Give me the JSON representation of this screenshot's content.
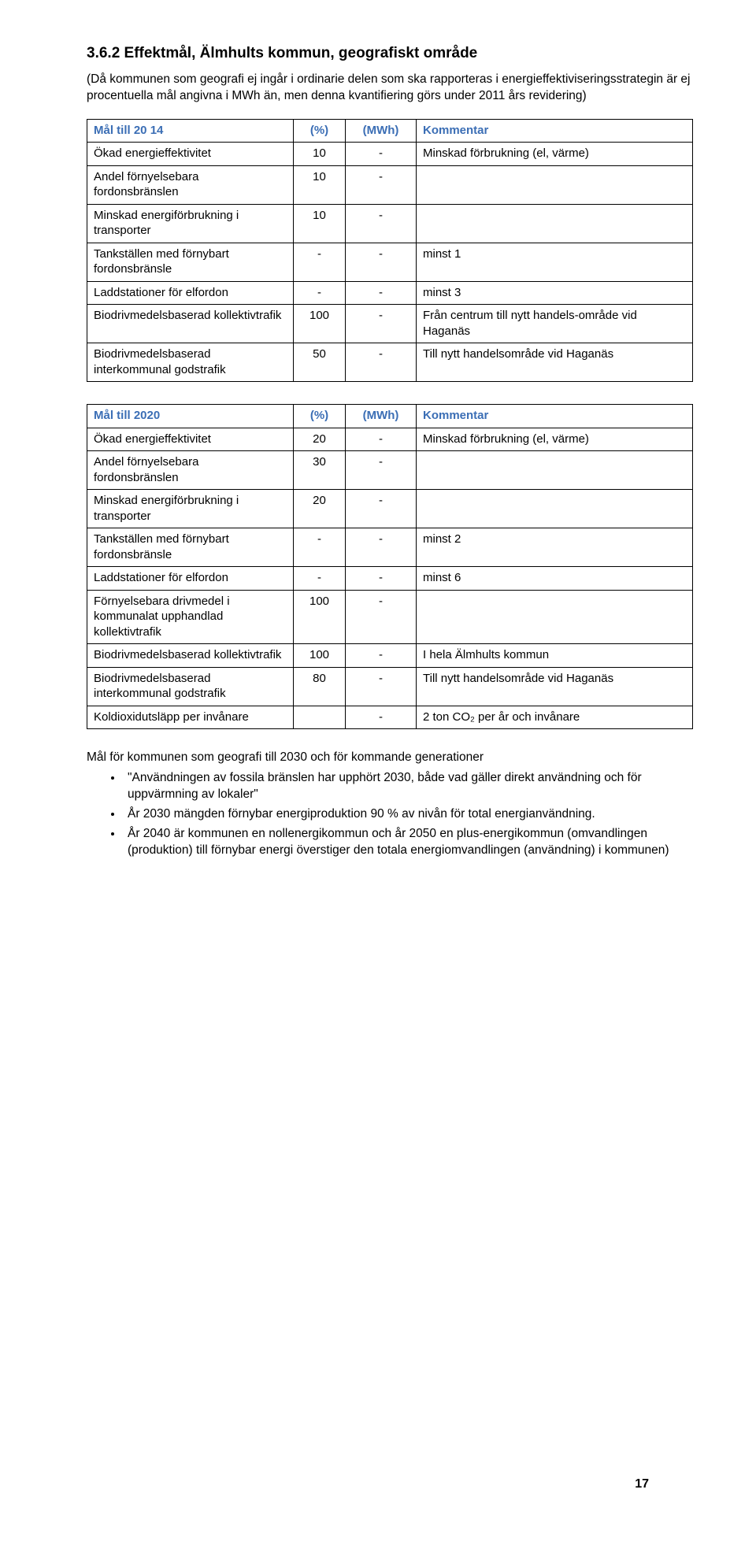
{
  "heading": "3.6.2   Effektmål, Älmhults kommun, geografiskt område",
  "intro": "(Då kommunen som geografi ej ingår i ordinarie delen som ska rapporteras i energieffektiviseringsstrategin är ej procentuella mål angivna i MWh än, men denna kvantifiering görs under 2011 års revidering)",
  "table1": {
    "header": [
      "Mål till 20 14",
      "(%)",
      "(MWh)",
      "Kommentar"
    ],
    "rows": [
      [
        "Ökad energieffektivitet",
        "10",
        "-",
        "Minskad förbrukning (el, värme)"
      ],
      [
        "Andel förnyelsebara fordonsbränslen",
        "10",
        "-",
        ""
      ],
      [
        "Minskad energiförbrukning i transporter",
        "10",
        "-",
        ""
      ],
      [
        "Tankställen med förnybart fordonsbränsle",
        "-",
        "-",
        "minst 1"
      ],
      [
        "Laddstationer för elfordon",
        "-",
        "-",
        "minst 3"
      ],
      [
        "Biodrivmedelsbaserad kollektivtrafik",
        "100",
        "-",
        "Från centrum till nytt handels-område vid Haganäs"
      ],
      [
        "Biodrivmedelsbaserad interkommunal godstrafik",
        "50",
        "-",
        "Till nytt handelsområde vid Haganäs"
      ]
    ]
  },
  "table2": {
    "header": [
      "Mål till 2020",
      "(%)",
      "(MWh)",
      "Kommentar"
    ],
    "rows": [
      [
        "Ökad energieffektivitet",
        "20",
        "-",
        "Minskad förbrukning (el, värme)"
      ],
      [
        "Andel förnyelsebara fordonsbränslen",
        "30",
        "-",
        ""
      ],
      [
        "Minskad energiförbrukning i transporter",
        "20",
        "-",
        ""
      ],
      [
        "Tankställen med förnybart fordonsbränsle",
        "-",
        "-",
        "minst 2"
      ],
      [
        "Laddstationer för elfordon",
        "-",
        "-",
        "minst 6"
      ],
      [
        "Förnyelsebara drivmedel i kommunalat upphandlad kollektivtrafik",
        "100",
        "-",
        ""
      ],
      [
        "Biodrivmedelsbaserad kollektivtrafik",
        "100",
        "-",
        "I hela Älmhults kommun"
      ],
      [
        "Biodrivmedelsbaserad interkommunal godstrafik",
        "80",
        "-",
        "Till nytt handelsområde vid Haganäs"
      ],
      [
        "Koldioxidutsläpp per invånare",
        "",
        "-",
        "2 ton CO₂ per år och invånare"
      ]
    ]
  },
  "sub2030": {
    "title": "Mål för kommunen som geografi till 2030 och för kommande generationer",
    "bullets": [
      "\"Användningen av fossila bränslen har upphört 2030, både vad gäller direkt användning och för uppvärmning av lokaler\"",
      "År 2030 mängden förnybar energiproduktion 90 % av nivån för total energianvändning.",
      "År 2040 är kommunen en nollenergikommun och år 2050 en plus-energikommun (omvandlingen (produktion) till förnybar energi överstiger den totala energiomvandlingen (användning) i kommunen)"
    ]
  },
  "pageNumber": "17"
}
